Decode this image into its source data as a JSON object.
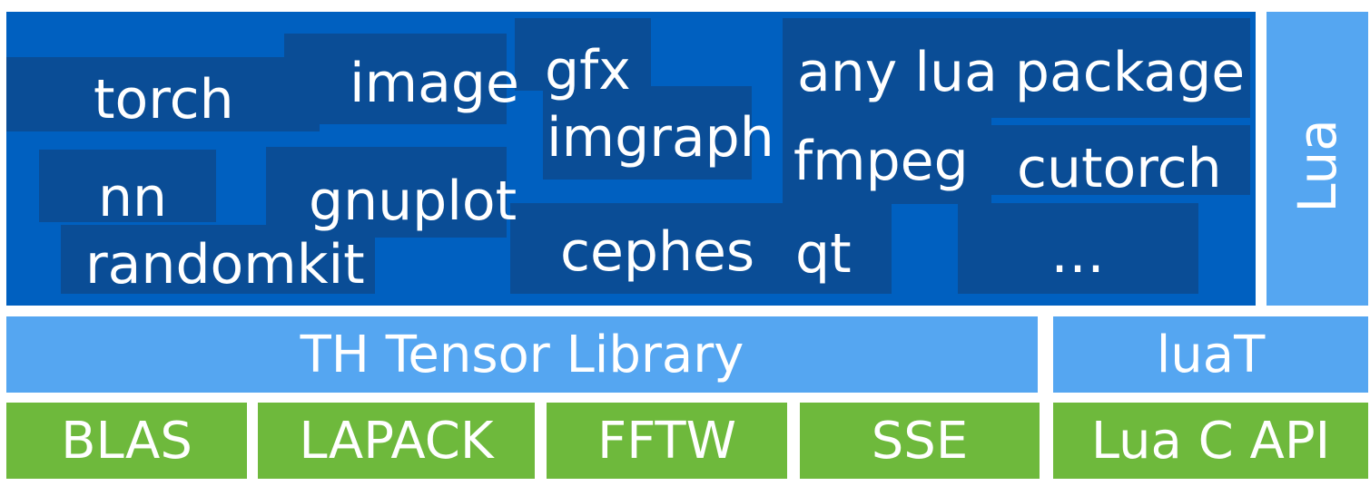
{
  "colors": {
    "package_area": "#0060c0",
    "package_blocks": "#0a4d96",
    "light_blue": "#55a6f1",
    "green": "#6eb93c",
    "text": "#ffffff"
  },
  "packages": {
    "torch": "torch",
    "image": "image",
    "gfx": "gfx",
    "imgraph": "imgraph",
    "any_lua_package": "any lua package",
    "fmpeg": "fmpeg",
    "cutorch": "cutorch",
    "nn": "nn",
    "gnuplot": "gnuplot",
    "randomkit": "randomkit",
    "cephes": "cephes",
    "qt": "qt",
    "ellipsis": "…"
  },
  "lua_label": "Lua",
  "tensor_library": "TH Tensor Library",
  "luaT": "luaT",
  "bottom": {
    "blas": "BLAS",
    "lapack": "LAPACK",
    "fftw": "FFTW",
    "sse": "SSE",
    "lua_c_api": "Lua C API"
  }
}
